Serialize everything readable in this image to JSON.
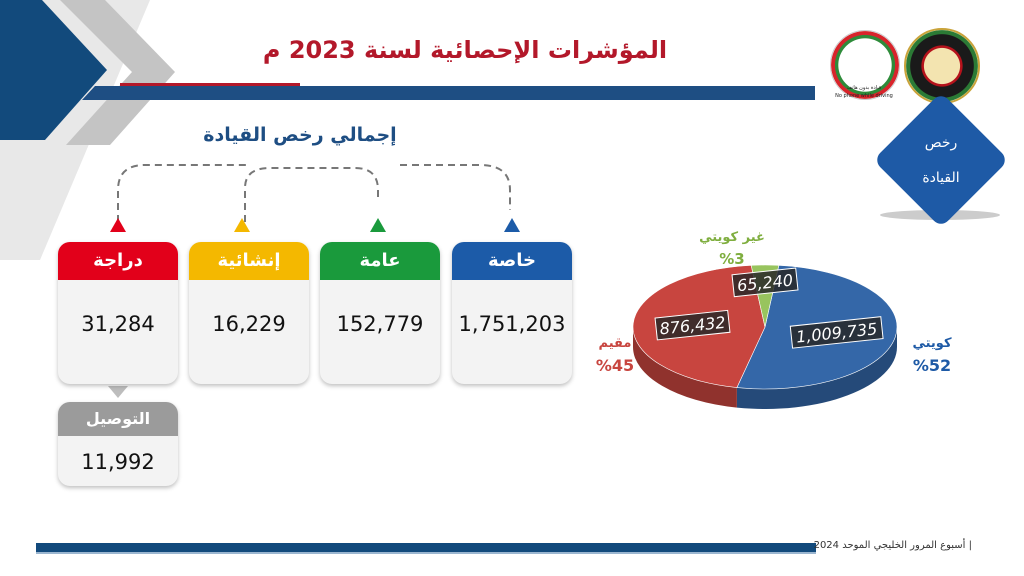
{
  "header": {
    "title": "المؤشرات الإحصائية لسنة 2023 م"
  },
  "logos": [
    {
      "name": "traffic-department-seal",
      "subtitle": "",
      "subtitle_en": ""
    },
    {
      "name": "campaign-logo",
      "subtitle": "قيادة بدون هاتف",
      "subtitle_en": "No phone while driving"
    }
  ],
  "main": {
    "subtitle": "إجمالي رخص القيادة",
    "cards": [
      {
        "id": "private",
        "label": "خاصة",
        "value": "1,751,203",
        "color": "#1c5ba8"
      },
      {
        "id": "public",
        "label": "عامة",
        "value": "152,779",
        "color": "#1a9a3c"
      },
      {
        "id": "construction",
        "label": "إنشائية",
        "value": "16,229",
        "color": "#f4b800"
      },
      {
        "id": "motorcycle",
        "label": "دراجة",
        "value": "31,284",
        "color": "#e2001a"
      },
      {
        "id": "delivery",
        "label": "التوصيل",
        "value": "11,992",
        "color": "#9b9b9b"
      }
    ]
  },
  "badge": {
    "line1": "رخص",
    "line2": "القيادة",
    "color": "#1e5aa6"
  },
  "chart_data": {
    "type": "pie",
    "title": "",
    "categories": [
      "كويتي",
      "مقيم",
      "غير كويتي"
    ],
    "values": [
      1009735,
      876432,
      65240
    ],
    "labels": [
      "1,009,735",
      "876,432",
      "65,240"
    ],
    "percent_labels": [
      "%52",
      "%45",
      "%3"
    ],
    "colors": [
      "#3467a8",
      "#c8453f",
      "#98c45e"
    ],
    "legend": "none"
  },
  "footer": {
    "text": "| أسبوع المرور الخليجي الموحد 2024"
  }
}
